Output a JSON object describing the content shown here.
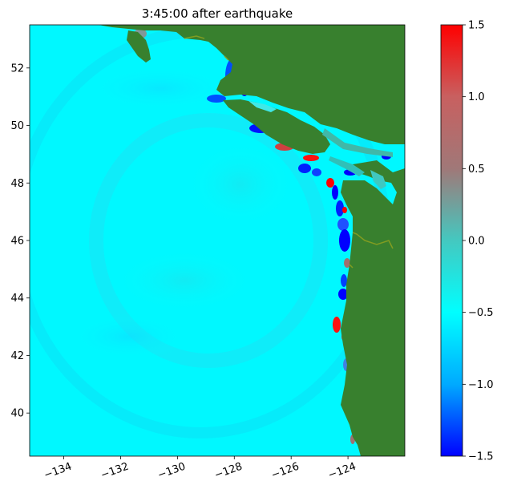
{
  "chart_data": {
    "type": "heatmap",
    "title": "3:45:00 after earthquake",
    "xlabel": "",
    "ylabel": "",
    "xlim": [
      -135.2,
      -122.0
    ],
    "ylim": [
      38.5,
      53.5
    ],
    "x_ticks": [
      -134,
      -132,
      -130,
      -128,
      -126,
      -124
    ],
    "x_tick_labels": [
      "−134",
      "−132",
      "−130",
      "−128",
      "−126",
      "−124"
    ],
    "y_ticks": [
      40,
      42,
      44,
      46,
      48,
      50,
      52
    ],
    "y_tick_labels": [
      "40",
      "42",
      "44",
      "46",
      "48",
      "50",
      "52"
    ],
    "grid": false,
    "colorbar": {
      "min": -1.5,
      "max": 1.5,
      "ticks": [
        -1.5,
        -1.0,
        -0.5,
        0.0,
        0.5,
        1.0,
        1.5
      ],
      "tick_labels": [
        "−1.5",
        "−1.0",
        "−0.5",
        "0.0",
        "0.5",
        "1.0",
        "1.5"
      ],
      "colors": [
        "#0000ff",
        "#00aaff",
        "#00ffff",
        "#44c8c0",
        "#a07878",
        "#c86060",
        "#ff0000"
      ]
    },
    "land_color": "#38802e",
    "ocean_color": "#00f8ff"
  }
}
